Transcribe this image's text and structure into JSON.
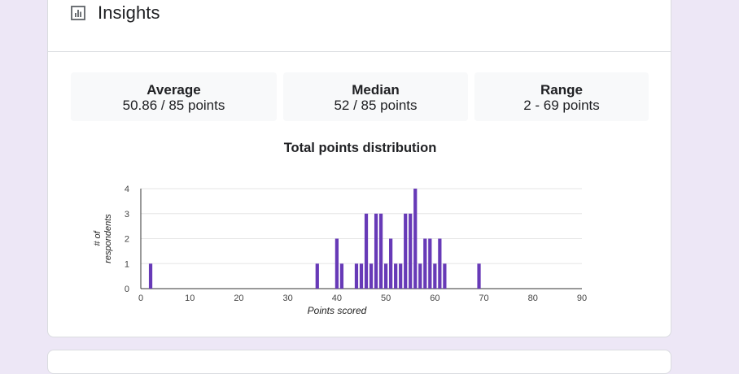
{
  "header": {
    "title": "Insights",
    "icon": "bar-chart-icon"
  },
  "stats": [
    {
      "label": "Average",
      "value": "50.86 / 85 points"
    },
    {
      "label": "Median",
      "value": "52 / 85 points"
    },
    {
      "label": "Range",
      "value": "2 - 69 points"
    }
  ],
  "colors": {
    "bar": "#673ab7",
    "background": "#ede7f6",
    "card": "#ffffff"
  },
  "chart_data": {
    "type": "bar",
    "title": "Total points distribution",
    "xlabel": "Points scored",
    "ylabel": "# of respondents",
    "xlim": [
      0,
      90
    ],
    "ylim": [
      0,
      4
    ],
    "xticks": [
      0,
      10,
      20,
      30,
      40,
      50,
      60,
      70,
      80,
      90
    ],
    "yticks": [
      0,
      1,
      2,
      3,
      4
    ],
    "grid": true,
    "x": [
      2,
      36,
      40,
      41,
      44,
      45,
      46,
      47,
      48,
      49,
      50,
      51,
      52,
      53,
      54,
      55,
      56,
      57,
      58,
      59,
      60,
      61,
      62,
      69
    ],
    "values": [
      1,
      1,
      2,
      1,
      1,
      1,
      3,
      1,
      3,
      3,
      1,
      2,
      1,
      1,
      3,
      3,
      4,
      1,
      2,
      2,
      1,
      2,
      1,
      1
    ]
  }
}
